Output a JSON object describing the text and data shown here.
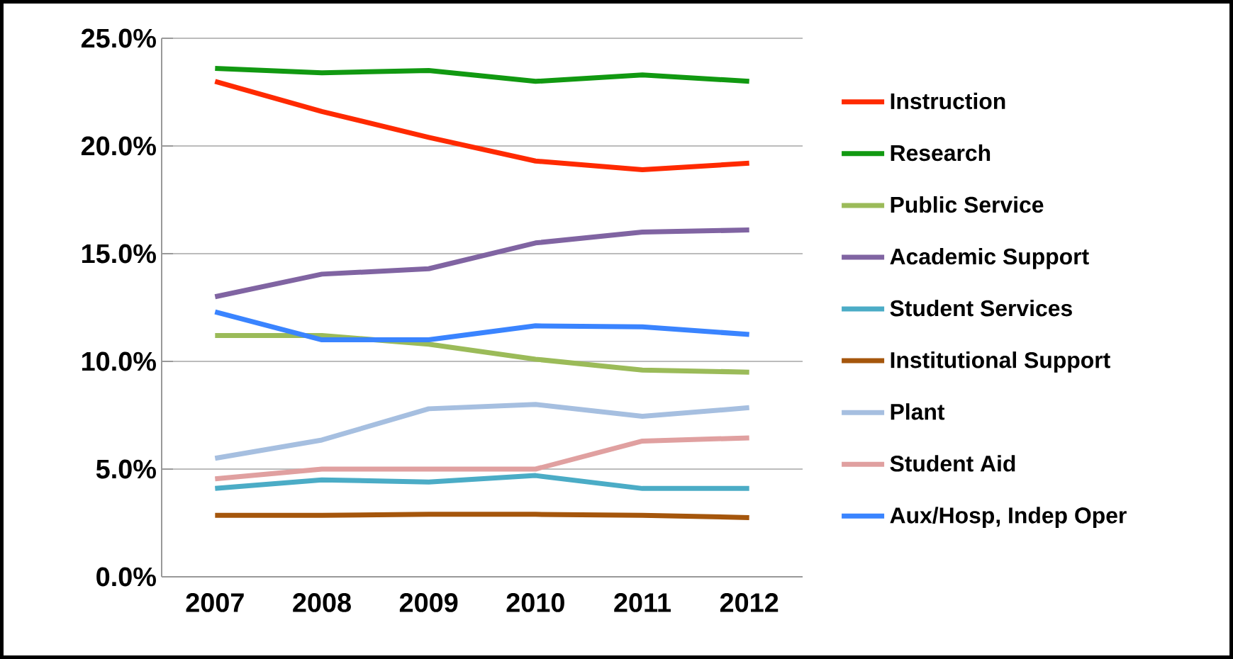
{
  "chart_data": {
    "type": "line",
    "categories": [
      "2007",
      "2008",
      "2009",
      "2010",
      "2011",
      "2012"
    ],
    "ylim": [
      0,
      25
    ],
    "yticks": [
      {
        "value": 0,
        "label": "0.0%"
      },
      {
        "value": 5,
        "label": "5.0%"
      },
      {
        "value": 10,
        "label": "10.0%"
      },
      {
        "value": 15,
        "label": "15.0%"
      },
      {
        "value": 20,
        "label": "20.0%"
      },
      {
        "value": 25,
        "label": "25.0%"
      }
    ],
    "grid": "y",
    "legend": "right",
    "marker": "none",
    "line_style": "solid",
    "series": [
      {
        "name": "Instruction",
        "color": "#ff2a00",
        "values": [
          23.0,
          21.6,
          20.4,
          19.3,
          18.9,
          19.2
        ]
      },
      {
        "name": "Research",
        "color": "#119911",
        "values": [
          23.6,
          23.4,
          23.5,
          23.0,
          23.3,
          23.0
        ]
      },
      {
        "name": "Public Service",
        "color": "#9bbb59",
        "values": [
          11.2,
          11.2,
          10.8,
          10.1,
          9.6,
          9.5
        ]
      },
      {
        "name": "Academic Support",
        "color": "#8064a2",
        "values": [
          13.0,
          14.05,
          14.3,
          15.5,
          16.0,
          16.1
        ]
      },
      {
        "name": "Student Services",
        "color": "#4bacc6",
        "values": [
          4.1,
          4.5,
          4.4,
          4.7,
          4.1,
          4.1
        ]
      },
      {
        "name": "Institutional Support",
        "color": "#a5560c",
        "values": [
          2.85,
          2.85,
          2.9,
          2.9,
          2.85,
          2.75
        ]
      },
      {
        "name": "Plant",
        "color": "#a6bfe0",
        "values": [
          5.5,
          6.35,
          7.8,
          8.0,
          7.45,
          7.85
        ]
      },
      {
        "name": "Student Aid",
        "color": "#e0a0a0",
        "values": [
          4.55,
          5.0,
          5.0,
          5.0,
          6.3,
          6.45
        ]
      },
      {
        "name": "Aux/Hosp, Indep Oper",
        "color": "#3a84ff",
        "values": [
          12.3,
          11.0,
          11.0,
          11.65,
          11.6,
          11.25
        ]
      }
    ]
  }
}
